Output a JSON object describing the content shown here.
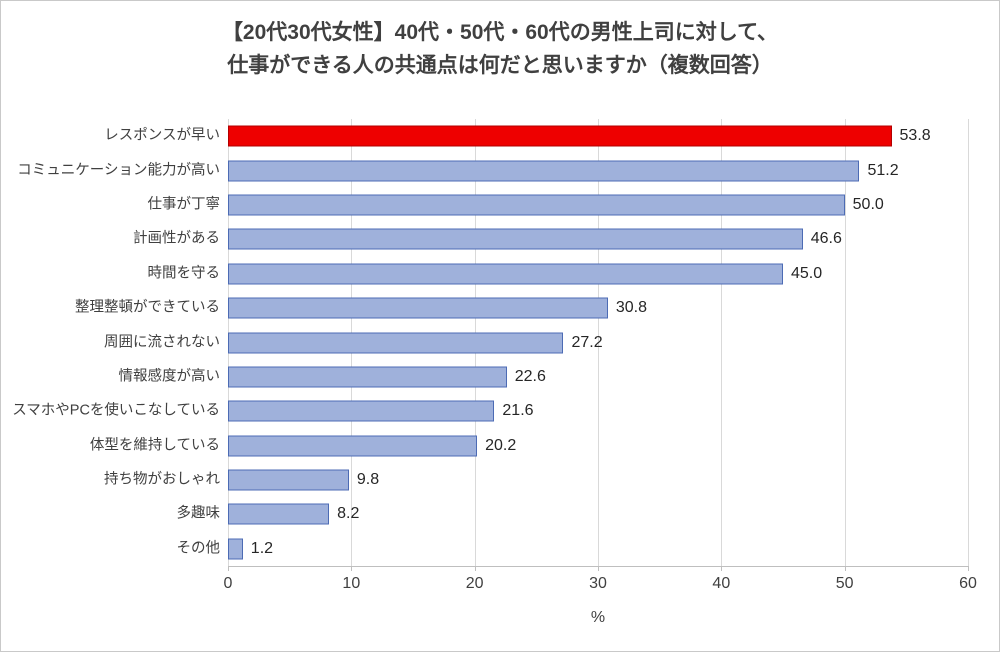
{
  "title": {
    "line1": "【20代30代女性】40代・50代・60代の男性上司に対して、",
    "line2": "仕事ができる人の共通点は何だと思いますか（複数回答）"
  },
  "chart_data": {
    "type": "bar",
    "orientation": "horizontal",
    "title": "【20代30代女性】40代・50代・60代の男性上司に対して、仕事ができる人の共通点は何だと思いますか（複数回答）",
    "categories": [
      "レスポンスが早い",
      "コミュニケーション能力が高い",
      "仕事が丁寧",
      "計画性がある",
      "時間を守る",
      "整理整頓ができている",
      "周囲に流されない",
      "情報感度が高い",
      "スマホやPCを使いこなしている",
      "体型を維持している",
      "持ち物がおしゃれ",
      "多趣味",
      "その他"
    ],
    "values": [
      53.8,
      51.2,
      50.0,
      46.6,
      45.0,
      30.8,
      27.2,
      22.6,
      21.6,
      20.2,
      9.8,
      8.2,
      1.2
    ],
    "value_labels": [
      "53.8",
      "51.2",
      "50.0",
      "46.6",
      "45.0",
      "30.8",
      "27.2",
      "22.6",
      "21.6",
      "20.2",
      "9.8",
      "8.2",
      "1.2"
    ],
    "highlight_index": 0,
    "xlabel": "%",
    "xlim": [
      0,
      60
    ],
    "xticks": [
      0,
      10,
      20,
      30,
      40,
      50,
      60
    ],
    "grid": true,
    "legend": false
  },
  "colors": {
    "bar_fill": "#9fb1db",
    "bar_border": "#4c6bb4",
    "highlight_fill": "#ee0000",
    "highlight_border": "#b30000",
    "gridline": "#d9d9d9",
    "axis": "#bfbfbf",
    "text": "#404040"
  }
}
